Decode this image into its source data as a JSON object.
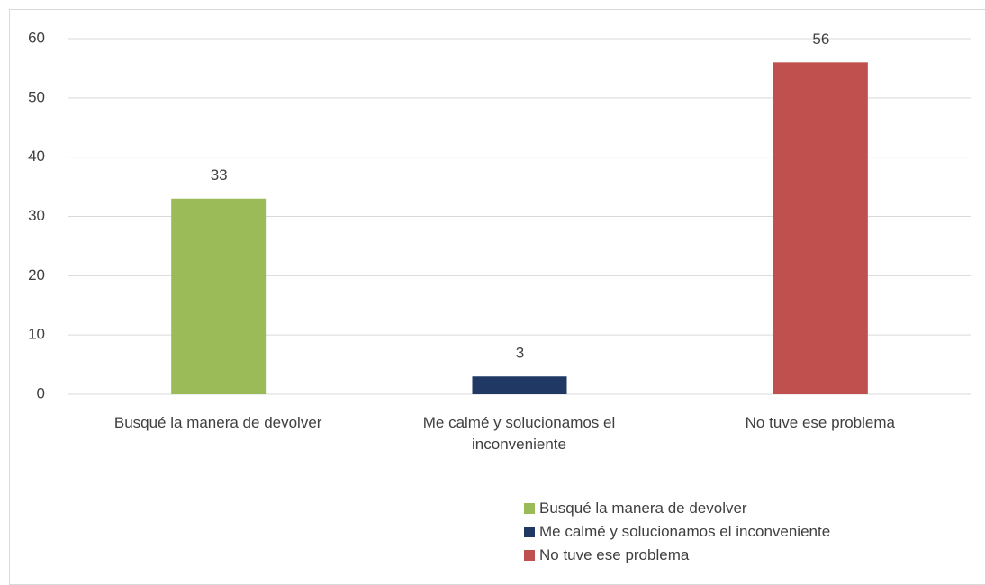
{
  "chart_data": {
    "type": "bar",
    "categories": [
      "Busqué la manera de devolver",
      "Me calmé y solucionamos el inconveniente",
      "No tuve ese problema"
    ],
    "values": [
      33,
      3,
      56
    ],
    "colors": [
      "#9bbb59",
      "#1f3864",
      "#c0504d"
    ],
    "ylim": [
      0,
      60
    ],
    "yticks": [
      0,
      10,
      20,
      30,
      40,
      50,
      60
    ],
    "grid": true,
    "legend": "bottom"
  }
}
